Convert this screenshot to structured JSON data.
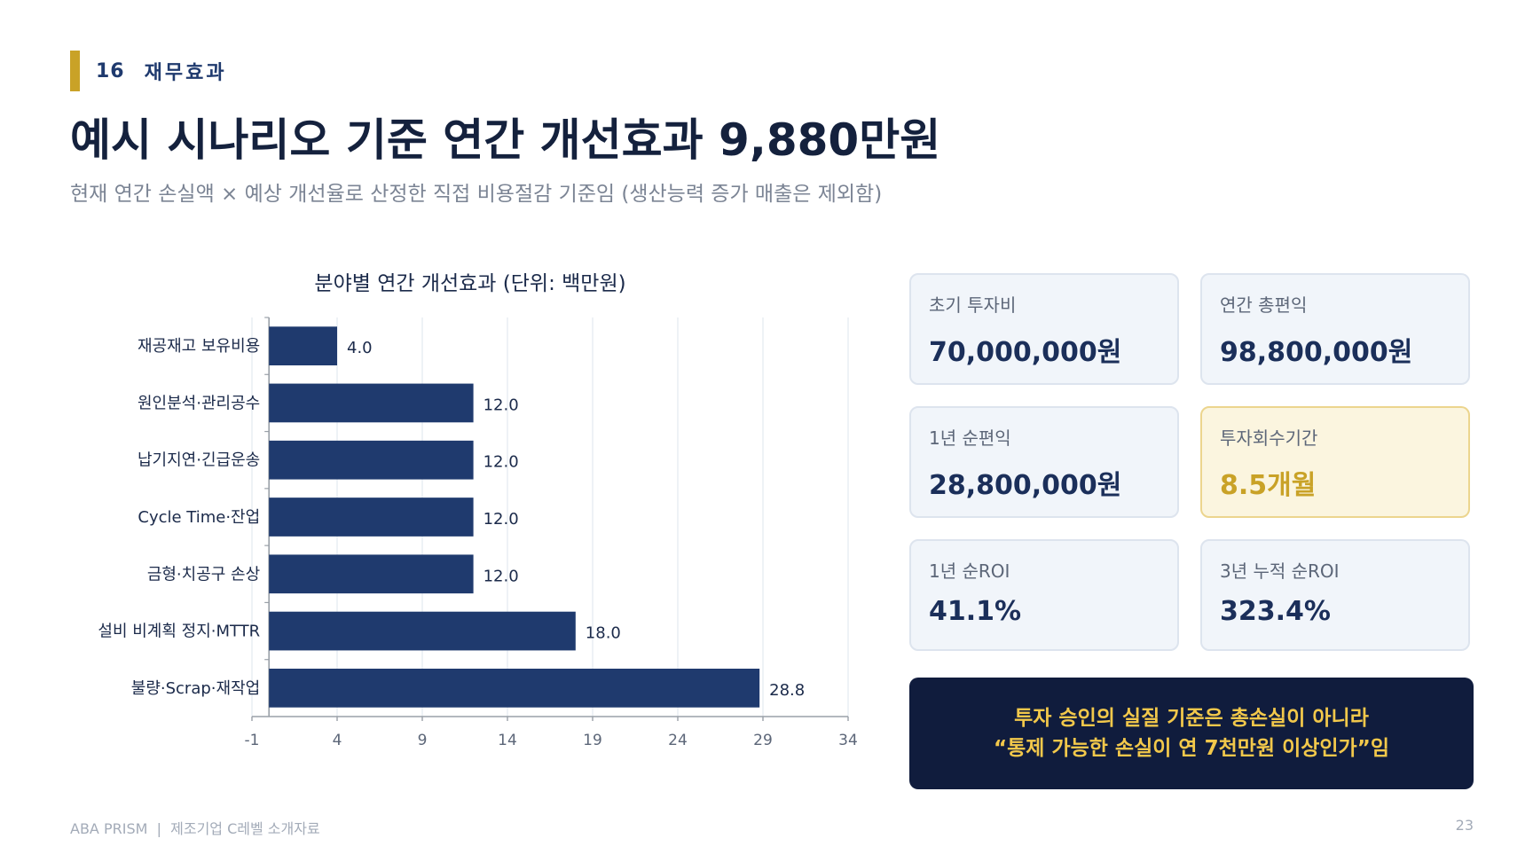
{
  "section": {
    "number": "16",
    "name": "재무효과"
  },
  "title": "예시 시나리오 기준 연간 개선효과 9,880만원",
  "subtitle": "현재 연간 손실액 × 예상 개선율로 산정한 직접 비용절감 기준임 (생산능력 증가 매출은 제외함)",
  "chart_data": {
    "type": "bar",
    "orientation": "horizontal",
    "title": "분야별 연간 개선효과 (단위: 백만원)",
    "categories": [
      "재공재고 보유비용",
      "원인분석·관리공수",
      "납기지연·긴급운송",
      "Cycle Time·잔업",
      "금형·치공구 손상",
      "설비 비계획 정지·MTTR",
      "불량·Scrap·재작업"
    ],
    "values": [
      4.0,
      12.0,
      12.0,
      12.0,
      12.0,
      18.0,
      28.8
    ],
    "value_labels": [
      "4.0",
      "12.0",
      "12.0",
      "12.0",
      "12.0",
      "18.0",
      "28.8"
    ],
    "xlim": [
      -1,
      34
    ],
    "xticks": [
      -1,
      4,
      9,
      14,
      19,
      24,
      29,
      34
    ],
    "grid": true,
    "bar_color": "#1f3a6e"
  },
  "cards": [
    {
      "label": "초기 투자비",
      "value": "70,000,000원"
    },
    {
      "label": "연간 총편익",
      "value": "98,800,000원"
    },
    {
      "label": "1년 순편익",
      "value": "28,800,000원"
    },
    {
      "label": "투자회수기간",
      "value": "8.5개월"
    },
    {
      "label": "1년 순ROI",
      "value": "41.1%"
    },
    {
      "label": "3년 누적 순ROI",
      "value": "323.4%"
    }
  ],
  "callout": {
    "line1": "투자 승인의 실질 기준은 총손실이 아니라",
    "line2": "“통제 가능한 손실이 연 7천만원 이상인가”임"
  },
  "footer": {
    "left": "ABA PRISM  |  제조기업 C레벨 소개자료",
    "page": "23"
  },
  "colors": {
    "accent_gold": "#c9a227",
    "navy": "#1f3a6e",
    "dark_navy": "#101c3d"
  }
}
